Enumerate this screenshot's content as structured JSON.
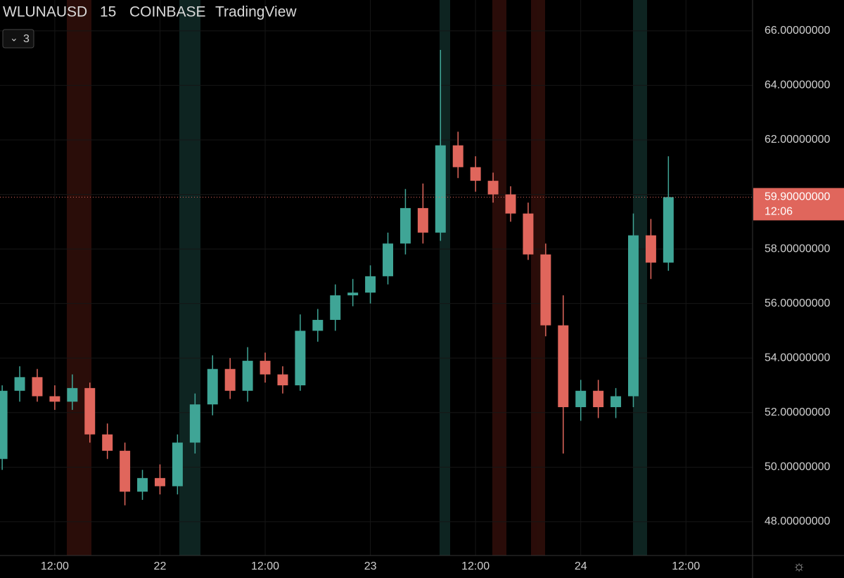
{
  "chart_data": {
    "type": "candlestick",
    "symbol": "WLUNAUSD",
    "interval": "15",
    "exchange": "COINBASE",
    "source": "TradingView",
    "indicator_count": "3",
    "up_color": "#3fa596",
    "down_color": "#e0665c",
    "x": [
      6,
      8,
      10,
      12,
      14,
      16,
      18,
      20,
      22,
      24,
      26,
      28,
      30,
      32,
      34,
      36,
      38,
      40,
      42,
      44,
      46,
      48,
      50,
      52,
      54,
      56,
      58,
      60,
      62,
      64,
      66,
      68,
      70,
      72,
      74,
      76,
      78,
      80,
      82
    ],
    "open": [
      50.3,
      52.8,
      53.3,
      52.6,
      52.4,
      52.9,
      51.2,
      50.6,
      49.1,
      49.6,
      49.3,
      50.9,
      52.3,
      53.6,
      52.8,
      53.9,
      53.4,
      53.0,
      55.0,
      55.4,
      56.3,
      56.4,
      57.0,
      58.2,
      59.5,
      58.6,
      61.8,
      61.0,
      60.5,
      60.0,
      59.3,
      57.8,
      55.2,
      52.2,
      52.8,
      52.2,
      52.6,
      58.5,
      57.5
    ],
    "high": [
      53.0,
      53.7,
      53.6,
      53.0,
      53.4,
      53.1,
      51.6,
      50.9,
      49.9,
      50.1,
      51.2,
      52.7,
      54.1,
      54.0,
      54.4,
      54.2,
      53.7,
      55.6,
      55.8,
      56.7,
      56.9,
      57.4,
      58.6,
      60.2,
      60.4,
      65.3,
      62.3,
      61.4,
      60.8,
      60.3,
      59.7,
      58.2,
      56.3,
      53.2,
      53.2,
      52.9,
      59.3,
      59.1,
      61.4
    ],
    "low": [
      49.9,
      52.4,
      52.4,
      52.1,
      52.1,
      50.9,
      50.3,
      48.6,
      48.8,
      49.0,
      49.0,
      50.5,
      51.9,
      52.5,
      52.4,
      53.1,
      52.7,
      52.8,
      54.6,
      55.0,
      55.9,
      56.0,
      56.7,
      57.8,
      58.2,
      58.3,
      60.6,
      60.1,
      59.7,
      59.0,
      57.6,
      54.8,
      50.5,
      51.7,
      51.8,
      51.8,
      52.2,
      56.9,
      57.2
    ],
    "close": [
      52.8,
      53.3,
      52.6,
      52.4,
      52.9,
      51.2,
      50.6,
      49.1,
      49.6,
      49.3,
      50.9,
      52.3,
      53.6,
      52.8,
      53.9,
      53.4,
      53.0,
      55.0,
      55.4,
      56.3,
      56.4,
      57.0,
      58.2,
      59.5,
      58.6,
      61.8,
      61.0,
      60.5,
      60.0,
      59.3,
      57.8,
      55.2,
      52.2,
      52.8,
      52.2,
      52.6,
      58.5,
      57.5,
      59.9
    ],
    "last_price": {
      "value": 59.9,
      "label": "59.90000000"
    },
    "countdown": "12:06",
    "xlim": [
      5.75,
      91.6
    ],
    "ylim": [
      46.76,
      67.13
    ],
    "xticks": [
      {
        "value": 12,
        "label": "12:00"
      },
      {
        "value": 24,
        "label": "22"
      },
      {
        "value": 36,
        "label": "12:00"
      },
      {
        "value": 48,
        "label": "23"
      },
      {
        "value": 60,
        "label": "12:00"
      },
      {
        "value": 72,
        "label": "24"
      },
      {
        "value": 84,
        "label": "12:00"
      }
    ],
    "yticks": [
      {
        "value": 48,
        "label": "48.00000000"
      },
      {
        "value": 50,
        "label": "50.00000000"
      },
      {
        "value": 52,
        "label": "52.00000000"
      },
      {
        "value": 54,
        "label": "54.00000000"
      },
      {
        "value": 56,
        "label": "56.00000000"
      },
      {
        "value": 58,
        "label": "58.00000000"
      },
      {
        "value": 60,
        "label": "60.00000000"
      },
      {
        "value": 62,
        "label": "62.00000000"
      },
      {
        "value": 64,
        "label": "64.00000000"
      },
      {
        "value": 66,
        "label": "66.00000000"
      }
    ],
    "grid": true
  }
}
